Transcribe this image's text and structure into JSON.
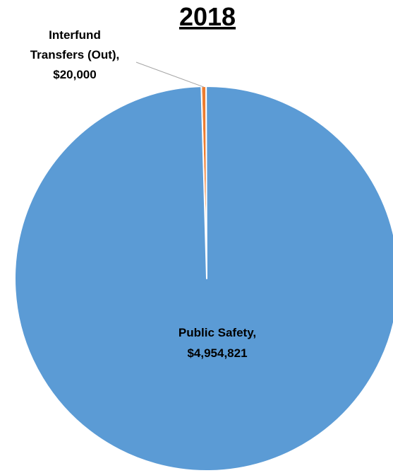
{
  "chart_data": {
    "type": "pie",
    "title": "2018",
    "slices": [
      {
        "label_lines": [
          "Interfund",
          "Transfers (Out),",
          "$20,000"
        ],
        "category": "Interfund Transfers (Out)",
        "value": 20000,
        "value_label": "$20,000",
        "color": "#ED7D31"
      },
      {
        "label_lines": [
          "Public Safety,",
          "$4,954,821"
        ],
        "category": "Public Safety",
        "value": 4954821,
        "value_label": "$4,954,821",
        "color": "#5B9BD5"
      }
    ],
    "slice_border_color": "#FFFFFF",
    "leader_line_color": "#A6A6A6",
    "legend": "none"
  }
}
